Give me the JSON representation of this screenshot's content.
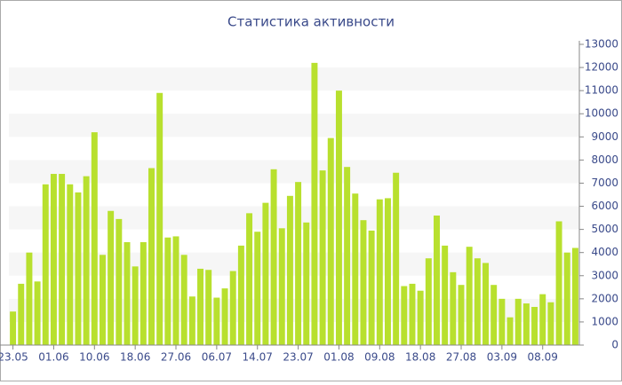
{
  "chart_data": {
    "type": "bar",
    "title": "Статистика активности",
    "categories": [
      "23.05",
      null,
      null,
      null,
      null,
      "01.06",
      null,
      null,
      null,
      null,
      "10.06",
      null,
      null,
      null,
      null,
      "18.06",
      null,
      null,
      null,
      null,
      "27.06",
      null,
      null,
      null,
      null,
      "06.07",
      null,
      null,
      null,
      null,
      "14.07",
      null,
      null,
      null,
      null,
      "23.07",
      null,
      null,
      null,
      null,
      "01.08",
      null,
      null,
      null,
      null,
      "09.08",
      null,
      null,
      null,
      null,
      "18.08",
      null,
      null,
      null,
      null,
      "27.08",
      null,
      null,
      null,
      null,
      "03.09",
      null,
      null,
      null,
      null,
      "08.09",
      null,
      null,
      null,
      null
    ],
    "values": [
      1450,
      2650,
      4000,
      2750,
      6950,
      7400,
      7400,
      6950,
      6600,
      7300,
      9200,
      3900,
      5800,
      5450,
      4450,
      3400,
      4450,
      7650,
      10900,
      4650,
      4700,
      3900,
      2100,
      3300,
      3250,
      2050,
      2450,
      3200,
      4300,
      5700,
      4900,
      6150,
      7600,
      5050,
      6450,
      7050,
      5300,
      12200,
      7550,
      8950,
      11000,
      7700,
      6550,
      5400,
      4950,
      6300,
      6350,
      7450,
      2550,
      2650,
      2350,
      3750,
      5600,
      4300,
      3150,
      2600,
      4250,
      3750,
      3550,
      2600,
      2000,
      1200,
      2000,
      1800,
      1650,
      2200,
      1850,
      5350,
      4000,
      4200
    ],
    "color": "#b8e02e",
    "ylim": [
      0,
      13000
    ],
    "yticks": [
      0,
      1000,
      2000,
      3000,
      4000,
      5000,
      6000,
      7000,
      8000,
      9000,
      10000,
      11000,
      12000,
      13000
    ],
    "grid": "banded",
    "band_color": "#f6f6f6",
    "y_axis_side": "right"
  }
}
